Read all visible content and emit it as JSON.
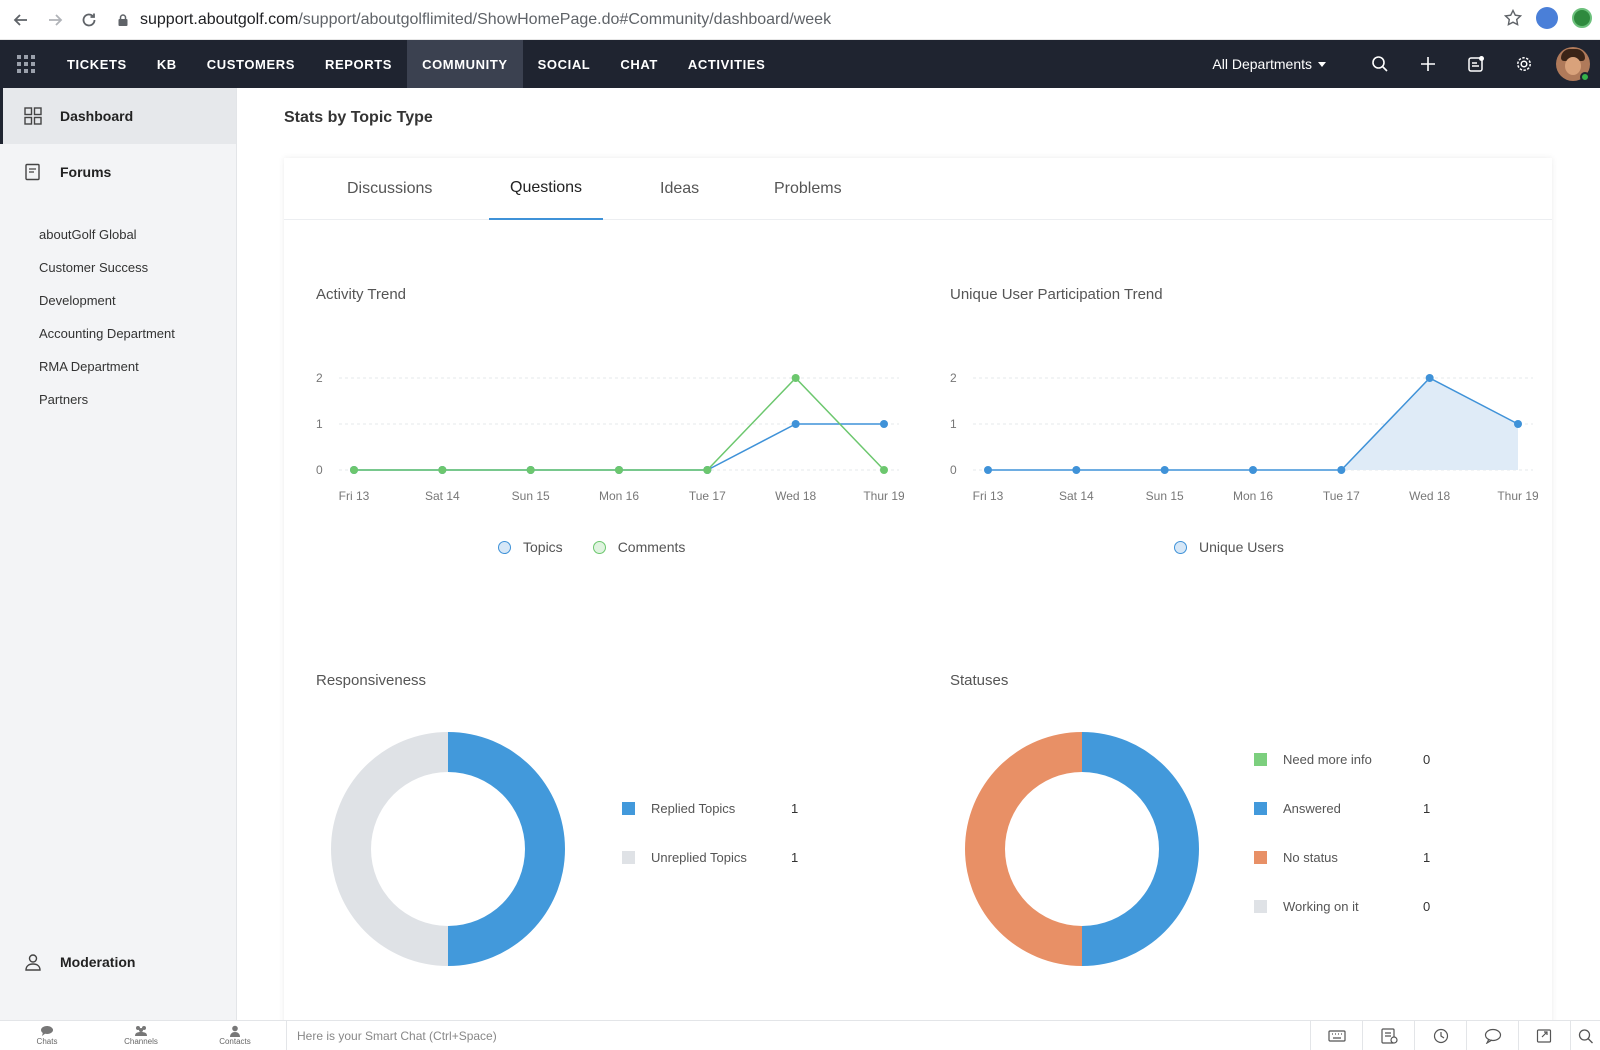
{
  "browser": {
    "url_host": "support.aboutgolf.com",
    "url_path": "/support/aboutgolflimited/ShowHomePage.do#Community/dashboard/week"
  },
  "nav": {
    "tabs": [
      "TICKETS",
      "KB",
      "CUSTOMERS",
      "REPORTS",
      "COMMUNITY",
      "SOCIAL",
      "CHAT",
      "ACTIVITIES"
    ],
    "active_tab": "COMMUNITY",
    "department": "All Departments"
  },
  "sidebar": {
    "dashboard": "Dashboard",
    "forums": "Forums",
    "forum_items": [
      "aboutGolf Global",
      "Customer Success",
      "Development",
      "Accounting Department",
      "RMA Department",
      "Partners"
    ],
    "moderation": "Moderation"
  },
  "main": {
    "section_title": "Stats by Topic Type",
    "tabs": [
      "Discussions",
      "Questions",
      "Ideas",
      "Problems"
    ],
    "active_tab": "Questions"
  },
  "panels": {
    "activity_title": "Activity Trend",
    "unique_title": "Unique User Participation Trend",
    "responsiveness_title": "Responsiveness",
    "statuses_title": "Statuses"
  },
  "chart_data": [
    {
      "type": "line",
      "title": "Activity Trend",
      "x": [
        "Fri 13",
        "Sat 14",
        "Sun 15",
        "Mon 16",
        "Tue 17",
        "Wed 18",
        "Thur 19"
      ],
      "yticks": [
        0,
        1,
        2
      ],
      "ylim": [
        0,
        2
      ],
      "series": [
        {
          "name": "Topics",
          "color": "#3f92d8",
          "values": [
            0,
            0,
            0,
            0,
            0,
            1,
            1
          ]
        },
        {
          "name": "Comments",
          "color": "#6cc76e",
          "values": [
            0,
            0,
            0,
            0,
            0,
            2,
            0
          ]
        }
      ],
      "legend": "bottom-center",
      "grid": true
    },
    {
      "type": "area",
      "title": "Unique User Participation Trend",
      "x": [
        "Fri 13",
        "Sat 14",
        "Sun 15",
        "Mon 16",
        "Tue 17",
        "Wed 18",
        "Thur 19"
      ],
      "yticks": [
        0,
        1,
        2
      ],
      "ylim": [
        0,
        2
      ],
      "series": [
        {
          "name": "Unique Users",
          "color": "#3f92d8",
          "values": [
            0,
            0,
            0,
            0,
            0,
            2,
            1
          ]
        }
      ],
      "legend": "bottom-center",
      "grid": true
    },
    {
      "type": "pie",
      "title": "Responsiveness",
      "slices": [
        {
          "label": "Replied Topics",
          "value": 1,
          "color": "#4299db"
        },
        {
          "label": "Unreplied Topics",
          "value": 1,
          "color": "#dfe2e6"
        }
      ],
      "legend": "right"
    },
    {
      "type": "pie",
      "title": "Statuses",
      "slices": [
        {
          "label": "Need more info",
          "value": 0,
          "color": "#7ccf7e"
        },
        {
          "label": "Answered",
          "value": 1,
          "color": "#4299db"
        },
        {
          "label": "No status",
          "value": 1,
          "color": "#e89066"
        },
        {
          "label": "Working on it",
          "value": 0,
          "color": "#dfe2e6"
        }
      ],
      "legend": "right"
    }
  ],
  "bottom_bar": {
    "chats": "Chats",
    "channels": "Channels",
    "contacts": "Contacts",
    "smart_chat": "Here is your Smart Chat (Ctrl+Space)"
  }
}
